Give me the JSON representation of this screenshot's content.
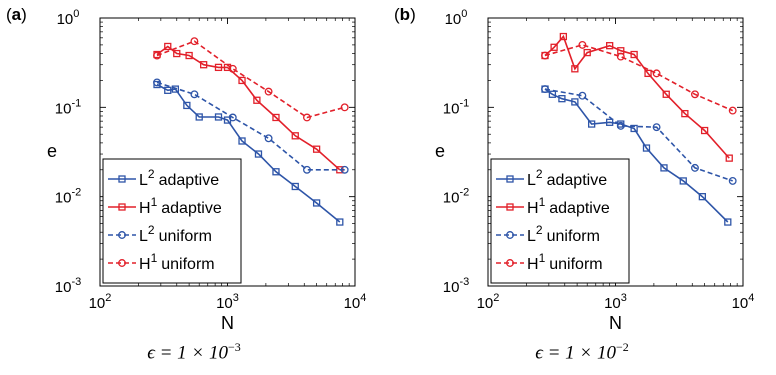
{
  "chart_data": [
    {
      "type": "line",
      "panel_label": "a",
      "caption_base": "ϵ = 1 × 10",
      "caption_exp": "−3",
      "xlabel": "N",
      "ylabel": "e",
      "xscale": "log",
      "yscale": "log",
      "xlim": [
        100,
        10000
      ],
      "ylim": [
        0.001,
        1
      ],
      "x_ticks": [
        {
          "base": "10",
          "exp": "2"
        },
        {
          "base": "10",
          "exp": "3"
        },
        {
          "base": "10",
          "exp": "4"
        }
      ],
      "y_ticks": [
        {
          "base": "10",
          "exp": "-3"
        },
        {
          "base": "10",
          "exp": "-2"
        },
        {
          "base": "10",
          "exp": "-1"
        },
        {
          "base": "10",
          "exp": "0"
        }
      ],
      "legend_position": "bottom-left",
      "series": [
        {
          "name_base": "L",
          "name_exp": "2",
          "name_rest": "adaptive",
          "color": "#2e55a8",
          "dash": "solid",
          "marker": "square",
          "x": [
            280,
            340,
            390,
            480,
            600,
            850,
            1000,
            1300,
            1750,
            2400,
            3400,
            5000,
            7600
          ],
          "y": [
            0.18,
            0.155,
            0.16,
            0.105,
            0.078,
            0.078,
            0.072,
            0.042,
            0.03,
            0.019,
            0.013,
            0.0085,
            0.0052
          ]
        },
        {
          "name_base": "H",
          "name_exp": "1",
          "name_rest": "adaptive",
          "color": "#e2202a",
          "dash": "solid",
          "marker": "square",
          "x": [
            280,
            340,
            400,
            500,
            650,
            850,
            1000,
            1300,
            1700,
            2400,
            3400,
            5000,
            7600
          ],
          "y": [
            0.39,
            0.48,
            0.4,
            0.38,
            0.3,
            0.28,
            0.28,
            0.2,
            0.12,
            0.077,
            0.048,
            0.034,
            0.02
          ]
        },
        {
          "name_base": "L",
          "name_exp": "2",
          "name_rest": "uniform",
          "color": "#2e55a8",
          "dash": "dashed",
          "marker": "circle",
          "x": [
            280,
            550,
            1100,
            2100,
            4200,
            8300
          ],
          "y": [
            0.19,
            0.14,
            0.077,
            0.045,
            0.02,
            0.02
          ]
        },
        {
          "name_base": "H",
          "name_exp": "1",
          "name_rest": "uniform",
          "color": "#e2202a",
          "dash": "dashed",
          "marker": "circle",
          "x": [
            280,
            550,
            1100,
            2100,
            4200,
            8300
          ],
          "y": [
            0.38,
            0.55,
            0.27,
            0.15,
            0.077,
            0.1
          ]
        }
      ]
    },
    {
      "type": "line",
      "panel_label": "b",
      "caption_base": "ϵ = 1 × 10",
      "caption_exp": "−2",
      "xlabel": "N",
      "ylabel": "e",
      "xscale": "log",
      "yscale": "log",
      "xlim": [
        100,
        10000
      ],
      "ylim": [
        0.001,
        1
      ],
      "x_ticks": [
        {
          "base": "10",
          "exp": "2"
        },
        {
          "base": "10",
          "exp": "3"
        },
        {
          "base": "10",
          "exp": "4"
        }
      ],
      "y_ticks": [
        {
          "base": "10",
          "exp": "-3"
        },
        {
          "base": "10",
          "exp": "-2"
        },
        {
          "base": "10",
          "exp": "-1"
        },
        {
          "base": "10",
          "exp": "0"
        }
      ],
      "legend_position": "bottom-left",
      "series": [
        {
          "name_base": "L",
          "name_exp": "2",
          "name_rest": "adaptive",
          "color": "#2e55a8",
          "dash": "solid",
          "marker": "square",
          "x": [
            280,
            320,
            380,
            480,
            650,
            900,
            1100,
            1400,
            1750,
            2400,
            3400,
            4800,
            7600
          ],
          "y": [
            0.16,
            0.14,
            0.125,
            0.115,
            0.065,
            0.068,
            0.065,
            0.058,
            0.035,
            0.021,
            0.015,
            0.01,
            0.0052
          ]
        },
        {
          "name_base": "H",
          "name_exp": "1",
          "name_rest": "adaptive",
          "color": "#e2202a",
          "dash": "solid",
          "marker": "square",
          "x": [
            280,
            330,
            390,
            480,
            600,
            900,
            1100,
            1400,
            1800,
            2500,
            3500,
            5000,
            7800
          ],
          "y": [
            0.38,
            0.47,
            0.62,
            0.27,
            0.41,
            0.49,
            0.43,
            0.39,
            0.24,
            0.14,
            0.085,
            0.055,
            0.027
          ]
        },
        {
          "name_base": "L",
          "name_exp": "2",
          "name_rest": "uniform",
          "color": "#2e55a8",
          "dash": "dashed",
          "marker": "circle",
          "x": [
            280,
            550,
            1100,
            2100,
            4200,
            8300
          ],
          "y": [
            0.16,
            0.135,
            0.062,
            0.06,
            0.021,
            0.015
          ]
        },
        {
          "name_base": "H",
          "name_exp": "1",
          "name_rest": "uniform",
          "color": "#e2202a",
          "dash": "dashed",
          "marker": "circle",
          "x": [
            280,
            550,
            1100,
            2100,
            4200,
            8300
          ],
          "y": [
            0.38,
            0.5,
            0.37,
            0.24,
            0.14,
            0.092
          ]
        }
      ]
    }
  ]
}
